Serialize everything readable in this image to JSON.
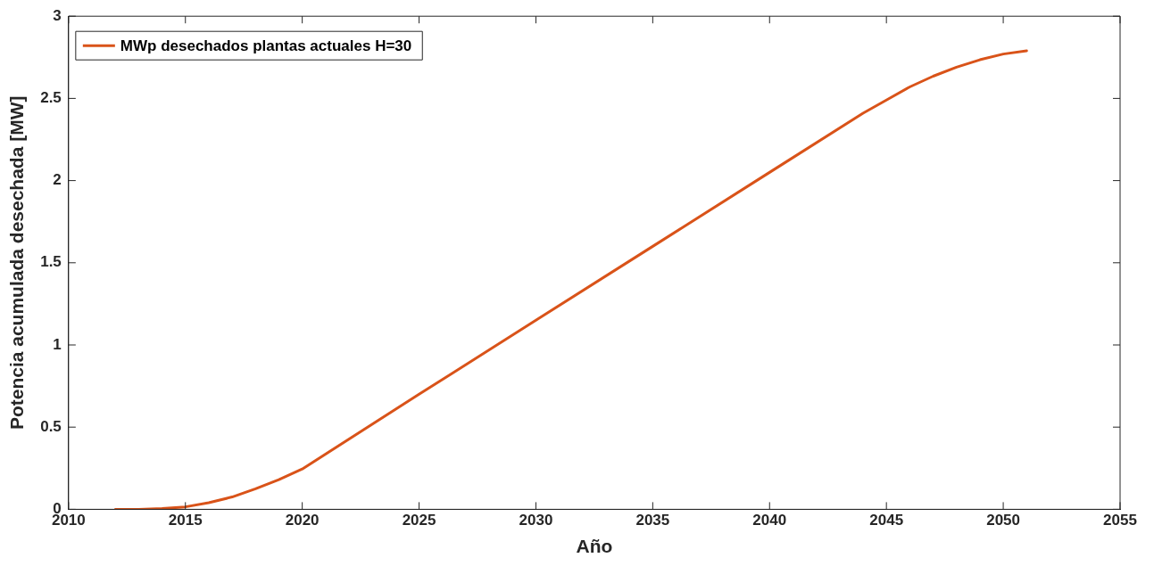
{
  "chart_data": {
    "type": "line",
    "xlabel": "Año",
    "ylabel": "Potencia acumulada desechada [MW]",
    "x": [
      2012,
      2013,
      2014,
      2015,
      2016,
      2017,
      2018,
      2019,
      2020,
      2025,
      2030,
      2035,
      2040,
      2044,
      2045,
      2046,
      2047,
      2048,
      2049,
      2050,
      2051
    ],
    "series": [
      {
        "name": "MWp desechados plantas actuales H=30",
        "color": "#d95319",
        "values": [
          0,
          0,
          0.005,
          0.015,
          0.04,
          0.075,
          0.125,
          0.18,
          0.245,
          0.7,
          1.15,
          1.6,
          2.05,
          2.41,
          2.49,
          2.57,
          2.635,
          2.69,
          2.735,
          2.77,
          2.79
        ]
      }
    ],
    "xlim": [
      2010,
      2055
    ],
    "xticks": [
      2010,
      2015,
      2020,
      2025,
      2030,
      2035,
      2040,
      2045,
      2050,
      2055
    ],
    "ylim": [
      0,
      3
    ],
    "yticks": [
      0,
      0.5,
      1,
      1.5,
      2,
      2.5,
      3
    ],
    "grid": false,
    "legend": "top left",
    "marker": "none",
    "line_style": "solid"
  }
}
